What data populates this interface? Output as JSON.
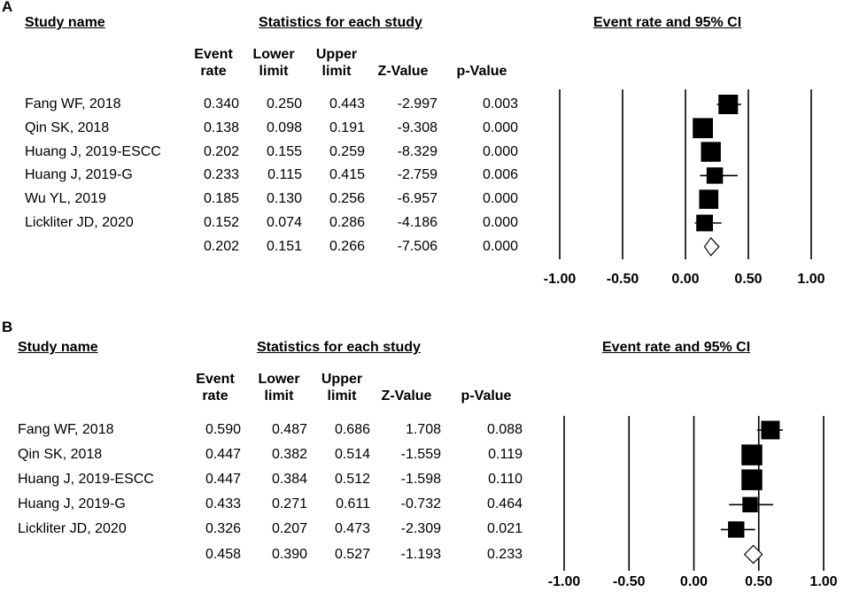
{
  "chart_data": [
    {
      "type": "forest",
      "panel_label": "A",
      "headers": {
        "study_name": "Study name",
        "statistics": "Statistics for each study",
        "plot_title": "Event rate and 95% CI",
        "columns": [
          "Event rate",
          "Lower limit",
          "Upper limit",
          "Z-Value",
          "p-Value"
        ]
      },
      "studies": [
        {
          "name": "Fang WF, 2018",
          "event_rate": "0.340",
          "lower": "0.250",
          "upper": "0.443",
          "z": "-2.997",
          "p": "0.003"
        },
        {
          "name": "Qin SK, 2018",
          "event_rate": "0.138",
          "lower": "0.098",
          "upper": "0.191",
          "z": "-9.308",
          "p": "0.000"
        },
        {
          "name": "Huang J, 2019-ESCC",
          "event_rate": "0.202",
          "lower": "0.155",
          "upper": "0.259",
          "z": "-8.329",
          "p": "0.000"
        },
        {
          "name": "Huang J, 2019-G",
          "event_rate": "0.233",
          "lower": "0.115",
          "upper": "0.415",
          "z": "-2.759",
          "p": "0.006"
        },
        {
          "name": "Wu YL, 2019",
          "event_rate": "0.185",
          "lower": "0.130",
          "upper": "0.256",
          "z": "-6.957",
          "p": "0.000"
        },
        {
          "name": "Lickliter JD, 2020",
          "event_rate": "0.152",
          "lower": "0.074",
          "upper": "0.286",
          "z": "-4.186",
          "p": "0.000"
        }
      ],
      "pooled": {
        "name": "",
        "event_rate": "0.202",
        "lower": "0.151",
        "upper": "0.266",
        "z": "-7.506",
        "p": "0.000"
      },
      "weights": [
        0.78,
        0.82,
        0.8,
        0.58,
        0.76,
        0.6
      ],
      "x_ticks": [
        "-1.00",
        "-0.50",
        "0.00",
        "0.50",
        "1.00"
      ],
      "xlim": [
        -1,
        1
      ]
    },
    {
      "type": "forest",
      "panel_label": "B",
      "headers": {
        "study_name": "Study name",
        "statistics": "Statistics for each study",
        "plot_title": "Event rate and 95% CI",
        "columns": [
          "Event rate",
          "Lower limit",
          "Upper limit",
          "Z-Value",
          "p-Value"
        ]
      },
      "studies": [
        {
          "name": "Fang WF, 2018",
          "event_rate": "0.590",
          "lower": "0.487",
          "upper": "0.686",
          "z": "1.708",
          "p": "0.088"
        },
        {
          "name": "Qin SK, 2018",
          "event_rate": "0.447",
          "lower": "0.382",
          "upper": "0.514",
          "z": "-1.559",
          "p": "0.119"
        },
        {
          "name": "Huang J, 2019-ESCC",
          "event_rate": "0.447",
          "lower": "0.384",
          "upper": "0.512",
          "z": "-1.598",
          "p": "0.110"
        },
        {
          "name": "Huang J, 2019-G",
          "event_rate": "0.433",
          "lower": "0.271",
          "upper": "0.611",
          "z": "-0.732",
          "p": "0.464"
        },
        {
          "name": "Lickliter JD, 2020",
          "event_rate": "0.326",
          "lower": "0.207",
          "upper": "0.473",
          "z": "-2.309",
          "p": "0.021"
        }
      ],
      "pooled": {
        "name": "",
        "event_rate": "0.458",
        "lower": "0.390",
        "upper": "0.527",
        "z": "-1.193",
        "p": "0.233"
      },
      "weights": [
        0.72,
        0.86,
        0.86,
        0.52,
        0.58
      ],
      "x_ticks": [
        "-1.00",
        "-0.50",
        "0.00",
        "0.50",
        "1.00"
      ],
      "xlim": [
        -1,
        1
      ]
    }
  ]
}
